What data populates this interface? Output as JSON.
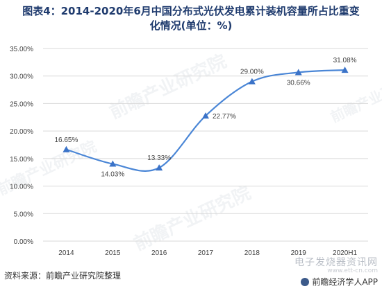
{
  "title": {
    "line1": "图表4：2014-2020年6月中国分布式光伏发电累计装机容量所占比重变",
    "line2": "化情况(单位：%)"
  },
  "source": "资料来源：前瞻产业研究院整理",
  "footer": {
    "watermark_line1": "电子发烧器资讯网",
    "watermark_line2": "www.ett-cn.com",
    "app_label": "前瞻经济学人APP"
  },
  "watermark_text": "前瞻产业研究院",
  "colors": {
    "line": "#4a86d6",
    "marker": "#3b73c8",
    "grid": "#d9d9d9",
    "text": "#404040"
  },
  "chart_data": {
    "type": "line",
    "categories": [
      "2014",
      "2015",
      "2016",
      "2017",
      "2018",
      "2019",
      "2020H1"
    ],
    "series": [
      {
        "values": [
          16.65,
          14.03,
          13.33,
          22.77,
          29.0,
          30.66,
          31.08
        ],
        "labels": [
          "16.65%",
          "14.03%",
          "13.33%",
          "22.77%",
          "29.00%",
          "30.66%",
          "31.08%"
        ]
      }
    ],
    "ylim": [
      0,
      35
    ],
    "yticks": [
      "0.00%",
      "5.00%",
      "10.00%",
      "15.00%",
      "20.00%",
      "25.00%",
      "30.00%",
      "35.00%"
    ],
    "grid": true,
    "smooth": true,
    "marker": "triangle"
  }
}
